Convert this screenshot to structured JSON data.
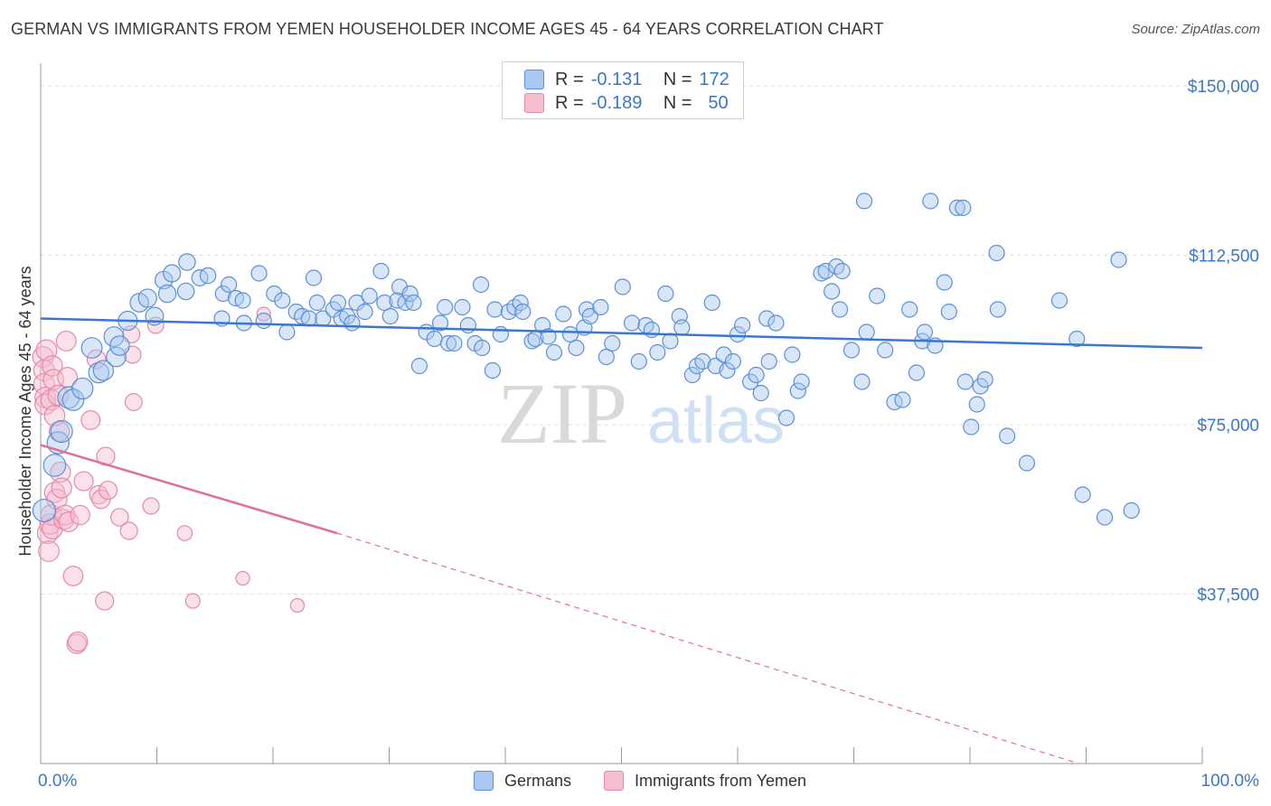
{
  "title": "GERMAN VS IMMIGRANTS FROM YEMEN HOUSEHOLDER INCOME AGES 45 - 64 YEARS CORRELATION CHART",
  "source": "Source: ZipAtlas.com",
  "watermark": {
    "zip": "ZIP",
    "atlas": "atlas"
  },
  "legend": {
    "rows": [
      {
        "r_label": "R =",
        "r_value": "-0.131",
        "n_label": "N =",
        "n_value": "172"
      },
      {
        "r_label": "R =",
        "r_value": "-0.189",
        "n_label": "N =",
        "n_value": "50"
      }
    ]
  },
  "colors": {
    "germans_fill": "#a8c8f0",
    "germans_stroke": "#5b8fd6",
    "germans_line": "#3a77d0",
    "yemen_fill": "#f6bcd0",
    "yemen_stroke": "#e58aa8",
    "yemen_line": "#e0709a",
    "tick_label": "#3a77c9"
  },
  "chart_data": {
    "type": "scatter",
    "title": "GERMAN VS IMMIGRANTS FROM YEMEN HOUSEHOLDER INCOME AGES 45 - 64 YEARS CORRELATION CHART",
    "xlabel": "",
    "ylabel": "Householder Income Ages 45 - 64 years",
    "xlim": [
      0,
      100
    ],
    "ylim": [
      0,
      155000
    ],
    "x_tick_labels": [
      "0.0%",
      "100.0%"
    ],
    "y_ticks": [
      37500,
      75000,
      112500,
      150000
    ],
    "y_tick_labels": [
      "$37,500",
      "$75,000",
      "$112,500",
      "$150,000"
    ],
    "grid": "horizontal dashed",
    "legend_position": "top-center and bottom",
    "series": [
      {
        "name": "Germans",
        "trend": {
          "x": [
            0,
            100
          ],
          "y": [
            98500,
            92000
          ]
        },
        "points": [
          [
            0.3,
            56000
          ],
          [
            1.2,
            66000
          ],
          [
            1.5,
            71000
          ],
          [
            1.8,
            73500
          ],
          [
            2.4,
            81000
          ],
          [
            2.8,
            80500
          ],
          [
            3.6,
            83000
          ],
          [
            4.4,
            92000
          ],
          [
            5.0,
            86500
          ],
          [
            5.4,
            87000
          ],
          [
            6.3,
            94500
          ],
          [
            6.5,
            90000
          ],
          [
            6.8,
            92500
          ],
          [
            7.5,
            98000
          ],
          [
            8.5,
            102000
          ],
          [
            9.2,
            103000
          ],
          [
            9.8,
            99000
          ],
          [
            10.6,
            107000
          ],
          [
            10.9,
            104000
          ],
          [
            11.3,
            108500
          ],
          [
            12.5,
            104500
          ],
          [
            12.6,
            111000
          ],
          [
            13.7,
            107500
          ],
          [
            14.4,
            108000
          ],
          [
            15.6,
            98500
          ],
          [
            15.7,
            104000
          ],
          [
            16.2,
            106000
          ],
          [
            16.8,
            103000
          ],
          [
            17.4,
            102500
          ],
          [
            17.5,
            97500
          ],
          [
            18.8,
            108500
          ],
          [
            19.2,
            98000
          ],
          [
            20.1,
            104000
          ],
          [
            20.8,
            102500
          ],
          [
            21.2,
            95500
          ],
          [
            22.0,
            100000
          ],
          [
            22.5,
            99000
          ],
          [
            23.1,
            98500
          ],
          [
            23.5,
            107500
          ],
          [
            23.8,
            102000
          ],
          [
            24.3,
            98500
          ],
          [
            25.2,
            100500
          ],
          [
            25.6,
            102000
          ],
          [
            25.9,
            98500
          ],
          [
            26.4,
            99000
          ],
          [
            26.8,
            97500
          ],
          [
            27.2,
            102000
          ],
          [
            27.9,
            100000
          ],
          [
            28.3,
            103500
          ],
          [
            29.3,
            109000
          ],
          [
            29.6,
            102000
          ],
          [
            30.1,
            99000
          ],
          [
            30.7,
            102500
          ],
          [
            30.9,
            105500
          ],
          [
            31.4,
            102000
          ],
          [
            31.8,
            104000
          ],
          [
            32.1,
            102000
          ],
          [
            32.6,
            88000
          ],
          [
            33.2,
            95500
          ],
          [
            33.9,
            94000
          ],
          [
            34.4,
            97500
          ],
          [
            34.8,
            101000
          ],
          [
            35.1,
            93000
          ],
          [
            35.6,
            93000
          ],
          [
            36.3,
            101000
          ],
          [
            36.8,
            97000
          ],
          [
            37.4,
            93000
          ],
          [
            37.9,
            106000
          ],
          [
            38.0,
            92000
          ],
          [
            38.9,
            87000
          ],
          [
            39.1,
            100500
          ],
          [
            39.6,
            95000
          ],
          [
            40.3,
            100000
          ],
          [
            40.8,
            101000
          ],
          [
            41.3,
            102000
          ],
          [
            41.5,
            100000
          ],
          [
            42.3,
            93500
          ],
          [
            42.6,
            94000
          ],
          [
            43.2,
            97000
          ],
          [
            43.7,
            94500
          ],
          [
            44.2,
            91000
          ],
          [
            45.0,
            99500
          ],
          [
            45.6,
            95000
          ],
          [
            46.1,
            92000
          ],
          [
            46.8,
            96500
          ],
          [
            47.0,
            100500
          ],
          [
            47.3,
            99000
          ],
          [
            48.2,
            101000
          ],
          [
            48.7,
            90000
          ],
          [
            49.2,
            93000
          ],
          [
            50.1,
            105500
          ],
          [
            50.9,
            97500
          ],
          [
            51.5,
            89000
          ],
          [
            52.1,
            97000
          ],
          [
            52.6,
            96000
          ],
          [
            53.1,
            91000
          ],
          [
            53.8,
            104000
          ],
          [
            54.2,
            93500
          ],
          [
            55.0,
            99000
          ],
          [
            55.2,
            96500
          ],
          [
            56.1,
            86000
          ],
          [
            56.5,
            88000
          ],
          [
            57.0,
            89000
          ],
          [
            57.8,
            102000
          ],
          [
            58.1,
            88000
          ],
          [
            58.8,
            90500
          ],
          [
            59.1,
            87000
          ],
          [
            59.6,
            89000
          ],
          [
            60.0,
            95000
          ],
          [
            60.4,
            97000
          ],
          [
            61.1,
            84500
          ],
          [
            61.6,
            86000
          ],
          [
            62.0,
            82000
          ],
          [
            62.5,
            98500
          ],
          [
            62.7,
            89000
          ],
          [
            63.3,
            97500
          ],
          [
            64.2,
            76500
          ],
          [
            64.7,
            90500
          ],
          [
            65.2,
            82500
          ],
          [
            65.5,
            84500
          ],
          [
            67.2,
            108500
          ],
          [
            67.6,
            109000
          ],
          [
            68.1,
            104500
          ],
          [
            68.5,
            110000
          ],
          [
            68.8,
            100500
          ],
          [
            69.0,
            109000
          ],
          [
            69.8,
            91500
          ],
          [
            70.7,
            84500
          ],
          [
            70.9,
            124500
          ],
          [
            71.1,
            95500
          ],
          [
            72.0,
            103500
          ],
          [
            72.7,
            91500
          ],
          [
            73.5,
            80000
          ],
          [
            74.2,
            80500
          ],
          [
            74.8,
            100500
          ],
          [
            75.4,
            86500
          ],
          [
            75.9,
            93500
          ],
          [
            76.1,
            95500
          ],
          [
            76.6,
            124500
          ],
          [
            77.0,
            92500
          ],
          [
            77.8,
            106500
          ],
          [
            78.2,
            100000
          ],
          [
            78.9,
            123000
          ],
          [
            79.4,
            123000
          ],
          [
            79.6,
            84500
          ],
          [
            80.1,
            74500
          ],
          [
            80.6,
            79500
          ],
          [
            80.9,
            83500
          ],
          [
            81.3,
            85000
          ],
          [
            82.3,
            113000
          ],
          [
            82.4,
            100500
          ],
          [
            83.2,
            72500
          ],
          [
            84.9,
            66500
          ],
          [
            87.7,
            102500
          ],
          [
            89.2,
            94000
          ],
          [
            89.7,
            59500
          ],
          [
            91.6,
            54500
          ],
          [
            92.8,
            111500
          ],
          [
            93.9,
            56000
          ]
        ]
      },
      {
        "name": "Immigrants from Yemen",
        "trend": {
          "x": [
            0,
            25.5
          ],
          "y": [
            70500,
            51000
          ],
          "dashed_to": [
            100,
            -8500
          ]
        },
        "points": [
          [
            0.2,
            90000
          ],
          [
            0.3,
            87000
          ],
          [
            0.3,
            84000
          ],
          [
            0.4,
            81000
          ],
          [
            0.4,
            79500
          ],
          [
            0.5,
            91500
          ],
          [
            0.6,
            51000
          ],
          [
            0.7,
            47000
          ],
          [
            0.8,
            53000
          ],
          [
            0.9,
            80500
          ],
          [
            0.9,
            55000
          ],
          [
            1.0,
            88000
          ],
          [
            1.0,
            52000
          ],
          [
            1.1,
            85000
          ],
          [
            1.2,
            77000
          ],
          [
            1.2,
            60000
          ],
          [
            1.4,
            58500
          ],
          [
            1.6,
            73500
          ],
          [
            1.7,
            64500
          ],
          [
            1.8,
            61000
          ],
          [
            2.0,
            54000
          ],
          [
            2.1,
            55000
          ],
          [
            2.2,
            93500
          ],
          [
            2.3,
            85500
          ],
          [
            2.4,
            53500
          ],
          [
            2.8,
            41500
          ],
          [
            3.1,
            26500
          ],
          [
            3.2,
            27000
          ],
          [
            3.4,
            55000
          ],
          [
            3.7,
            62500
          ],
          [
            4.3,
            76000
          ],
          [
            4.8,
            89500
          ],
          [
            5.0,
            59500
          ],
          [
            5.2,
            58500
          ],
          [
            5.5,
            36000
          ],
          [
            5.6,
            68000
          ],
          [
            5.8,
            60500
          ],
          [
            6.8,
            54500
          ],
          [
            7.6,
            51500
          ],
          [
            7.8,
            95000
          ],
          [
            7.9,
            90500
          ],
          [
            8.0,
            80000
          ],
          [
            9.5,
            57000
          ],
          [
            9.9,
            97000
          ],
          [
            12.4,
            51000
          ],
          [
            13.1,
            36000
          ],
          [
            17.4,
            41000
          ],
          [
            19.2,
            99500
          ],
          [
            22.1,
            35000
          ],
          [
            1.5,
            81500
          ]
        ]
      }
    ]
  }
}
